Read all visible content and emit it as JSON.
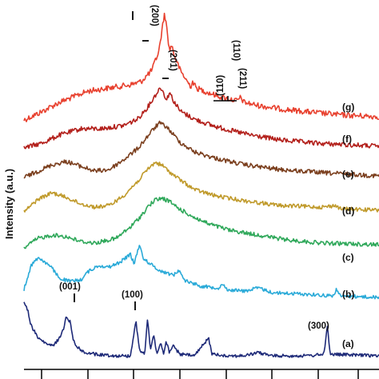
{
  "chart_data": {
    "type": "line",
    "title": "",
    "xlabel": "",
    "ylabel": "Intensity (a.u.)",
    "x_range": [
      0,
      100
    ],
    "grid": false,
    "legend": "none",
    "series": [
      {
        "name": "(g)",
        "color": "#e8412f",
        "base": 150,
        "points": [
          [
            0,
            0
          ],
          [
            4,
            -8
          ],
          [
            10,
            -22
          ],
          [
            18,
            -36
          ],
          [
            24,
            -40
          ],
          [
            30,
            -44
          ],
          [
            33,
            -48
          ],
          [
            36,
            -62
          ],
          [
            38,
            -86
          ],
          [
            39,
            -116
          ],
          [
            39.6,
            -134
          ],
          [
            40.3,
            -112
          ],
          [
            41,
            -86
          ],
          [
            41.6,
            -94
          ],
          [
            42.4,
            -80
          ],
          [
            44,
            -62
          ],
          [
            46,
            -48
          ],
          [
            47,
            -42
          ],
          [
            47.5,
            -48
          ],
          [
            48.5,
            -40
          ],
          [
            52,
            -34
          ],
          [
            56,
            -28
          ],
          [
            60,
            -24
          ],
          [
            61,
            -28
          ],
          [
            62,
            -22
          ],
          [
            66,
            -18
          ],
          [
            72,
            -14
          ],
          [
            80,
            -10
          ],
          [
            90,
            -6
          ],
          [
            100,
            -4
          ]
        ],
        "noise": 3.5
      },
      {
        "name": "(f)",
        "color": "#b3201b",
        "base": 185,
        "points": [
          [
            0,
            0
          ],
          [
            5,
            -6
          ],
          [
            10,
            -16
          ],
          [
            16,
            -24
          ],
          [
            22,
            -24
          ],
          [
            28,
            -28
          ],
          [
            32,
            -36
          ],
          [
            35,
            -52
          ],
          [
            37,
            -66
          ],
          [
            38.5,
            -76
          ],
          [
            39.4,
            -68
          ],
          [
            40.2,
            -60
          ],
          [
            41,
            -70
          ],
          [
            42,
            -60
          ],
          [
            44,
            -46
          ],
          [
            48,
            -36
          ],
          [
            53,
            -28
          ],
          [
            58,
            -22
          ],
          [
            64,
            -16
          ],
          [
            72,
            -10
          ],
          [
            82,
            -6
          ],
          [
            100,
            -2
          ]
        ],
        "noise": 3
      },
      {
        "name": "(e)",
        "color": "#7b3f1e",
        "base": 222,
        "points": [
          [
            0,
            0
          ],
          [
            4,
            -8
          ],
          [
            8,
            -16
          ],
          [
            12,
            -20
          ],
          [
            16,
            -14
          ],
          [
            20,
            -8
          ],
          [
            24,
            -10
          ],
          [
            28,
            -22
          ],
          [
            32,
            -36
          ],
          [
            36,
            -58
          ],
          [
            38,
            -68
          ],
          [
            40,
            -64
          ],
          [
            42,
            -54
          ],
          [
            44,
            -44
          ],
          [
            48,
            -32
          ],
          [
            54,
            -24
          ],
          [
            62,
            -16
          ],
          [
            72,
            -10
          ],
          [
            84,
            -6
          ],
          [
            100,
            -2
          ]
        ],
        "noise": 2.8
      },
      {
        "name": "(d)",
        "color": "#c09a2b",
        "base": 265,
        "points": [
          [
            0,
            0
          ],
          [
            4,
            -16
          ],
          [
            8,
            -24
          ],
          [
            12,
            -18
          ],
          [
            16,
            -10
          ],
          [
            20,
            -6
          ],
          [
            24,
            -8
          ],
          [
            28,
            -20
          ],
          [
            32,
            -38
          ],
          [
            35,
            -54
          ],
          [
            37,
            -62
          ],
          [
            39,
            -58
          ],
          [
            41,
            -50
          ],
          [
            44,
            -40
          ],
          [
            48,
            -28
          ],
          [
            54,
            -20
          ],
          [
            62,
            -14
          ],
          [
            72,
            -8
          ],
          [
            84,
            -6
          ],
          [
            88,
            -8
          ],
          [
            89,
            -4
          ],
          [
            100,
            -2
          ]
        ],
        "noise": 2.5
      },
      {
        "name": "(c)",
        "color": "#2fa85a",
        "base": 310,
        "points": [
          [
            0,
            0
          ],
          [
            4,
            -12
          ],
          [
            8,
            -16
          ],
          [
            12,
            -14
          ],
          [
            16,
            -8
          ],
          [
            20,
            -6
          ],
          [
            26,
            -12
          ],
          [
            30,
            -26
          ],
          [
            33,
            -40
          ],
          [
            35,
            -52
          ],
          [
            37,
            -60
          ],
          [
            39,
            -62
          ],
          [
            41,
            -58
          ],
          [
            44,
            -48
          ],
          [
            48,
            -38
          ],
          [
            52,
            -30
          ],
          [
            58,
            -22
          ],
          [
            66,
            -16
          ],
          [
            74,
            -10
          ],
          [
            84,
            -6
          ],
          [
            100,
            -4
          ]
        ],
        "noise": 2.6
      },
      {
        "name": "(b)",
        "color": "#2aaad8",
        "base": 372,
        "points": [
          [
            0,
            -10
          ],
          [
            2,
            -40
          ],
          [
            4,
            -50
          ],
          [
            6,
            -44
          ],
          [
            8,
            -36
          ],
          [
            10,
            -24
          ],
          [
            13,
            -20
          ],
          [
            16,
            -22
          ],
          [
            18,
            -32
          ],
          [
            21,
            -40
          ],
          [
            24,
            -38
          ],
          [
            27,
            -44
          ],
          [
            30,
            -54
          ],
          [
            31,
            -42
          ],
          [
            32.5,
            -66
          ],
          [
            33.5,
            -50
          ],
          [
            35,
            -44
          ],
          [
            38,
            -34
          ],
          [
            42,
            -28
          ],
          [
            44,
            -34
          ],
          [
            45,
            -22
          ],
          [
            50,
            -14
          ],
          [
            55,
            -12
          ],
          [
            56,
            -18
          ],
          [
            57,
            -10
          ],
          [
            62,
            -8
          ],
          [
            66,
            -12
          ],
          [
            70,
            -6
          ],
          [
            80,
            -4
          ],
          [
            87,
            -2
          ],
          [
            88,
            -10
          ],
          [
            89,
            -2
          ],
          [
            100,
            0
          ]
        ],
        "noise": 2.2
      },
      {
        "name": "(a)",
        "color": "#1e2a78",
        "base": 447,
        "points": [
          [
            0,
            -70
          ],
          [
            1,
            -60
          ],
          [
            2,
            -40
          ],
          [
            4,
            -24
          ],
          [
            6,
            -18
          ],
          [
            8,
            -14
          ],
          [
            10,
            -24
          ],
          [
            11,
            -34
          ],
          [
            12,
            -52
          ],
          [
            13,
            -44
          ],
          [
            14,
            -20
          ],
          [
            16,
            -8
          ],
          [
            20,
            -4
          ],
          [
            26,
            -2
          ],
          [
            30,
            -2
          ],
          [
            31.5,
            -46
          ],
          [
            32.5,
            -10
          ],
          [
            34,
            -4
          ],
          [
            34.8,
            -50
          ],
          [
            35.6,
            -10
          ],
          [
            36.6,
            -28
          ],
          [
            37.4,
            -4
          ],
          [
            38.5,
            -18
          ],
          [
            39.3,
            -4
          ],
          [
            40,
            -20
          ],
          [
            41,
            -6
          ],
          [
            42,
            -14
          ],
          [
            44,
            -4
          ],
          [
            48,
            -2
          ],
          [
            52,
            -24
          ],
          [
            53,
            -4
          ],
          [
            58,
            -2
          ],
          [
            62,
            -2
          ],
          [
            66,
            -6
          ],
          [
            70,
            -2
          ],
          [
            80,
            -2
          ],
          [
            84.5,
            -4
          ],
          [
            85.4,
            -40
          ],
          [
            86.3,
            -4
          ],
          [
            100,
            -2
          ]
        ],
        "noise": 2
      }
    ],
    "annotations": [
      {
        "text": "(001)",
        "series": "(a)"
      },
      {
        "text": "(100)",
        "series": "(a)"
      },
      {
        "text": "(300)",
        "series": "(a)"
      },
      {
        "text": "(200)",
        "series": "(g)"
      },
      {
        "text": "(201)",
        "series": "(g)"
      },
      {
        "text": "(110)",
        "series": "(g)",
        "index": 0
      },
      {
        "text": "(110)",
        "series": "(g)",
        "index": 1
      },
      {
        "text": "(211)",
        "series": "(g)"
      }
    ],
    "curve_labels": [
      "(g)",
      "(f)",
      "(e)",
      "(d)",
      "(c)",
      "(b)",
      "(a)"
    ]
  }
}
